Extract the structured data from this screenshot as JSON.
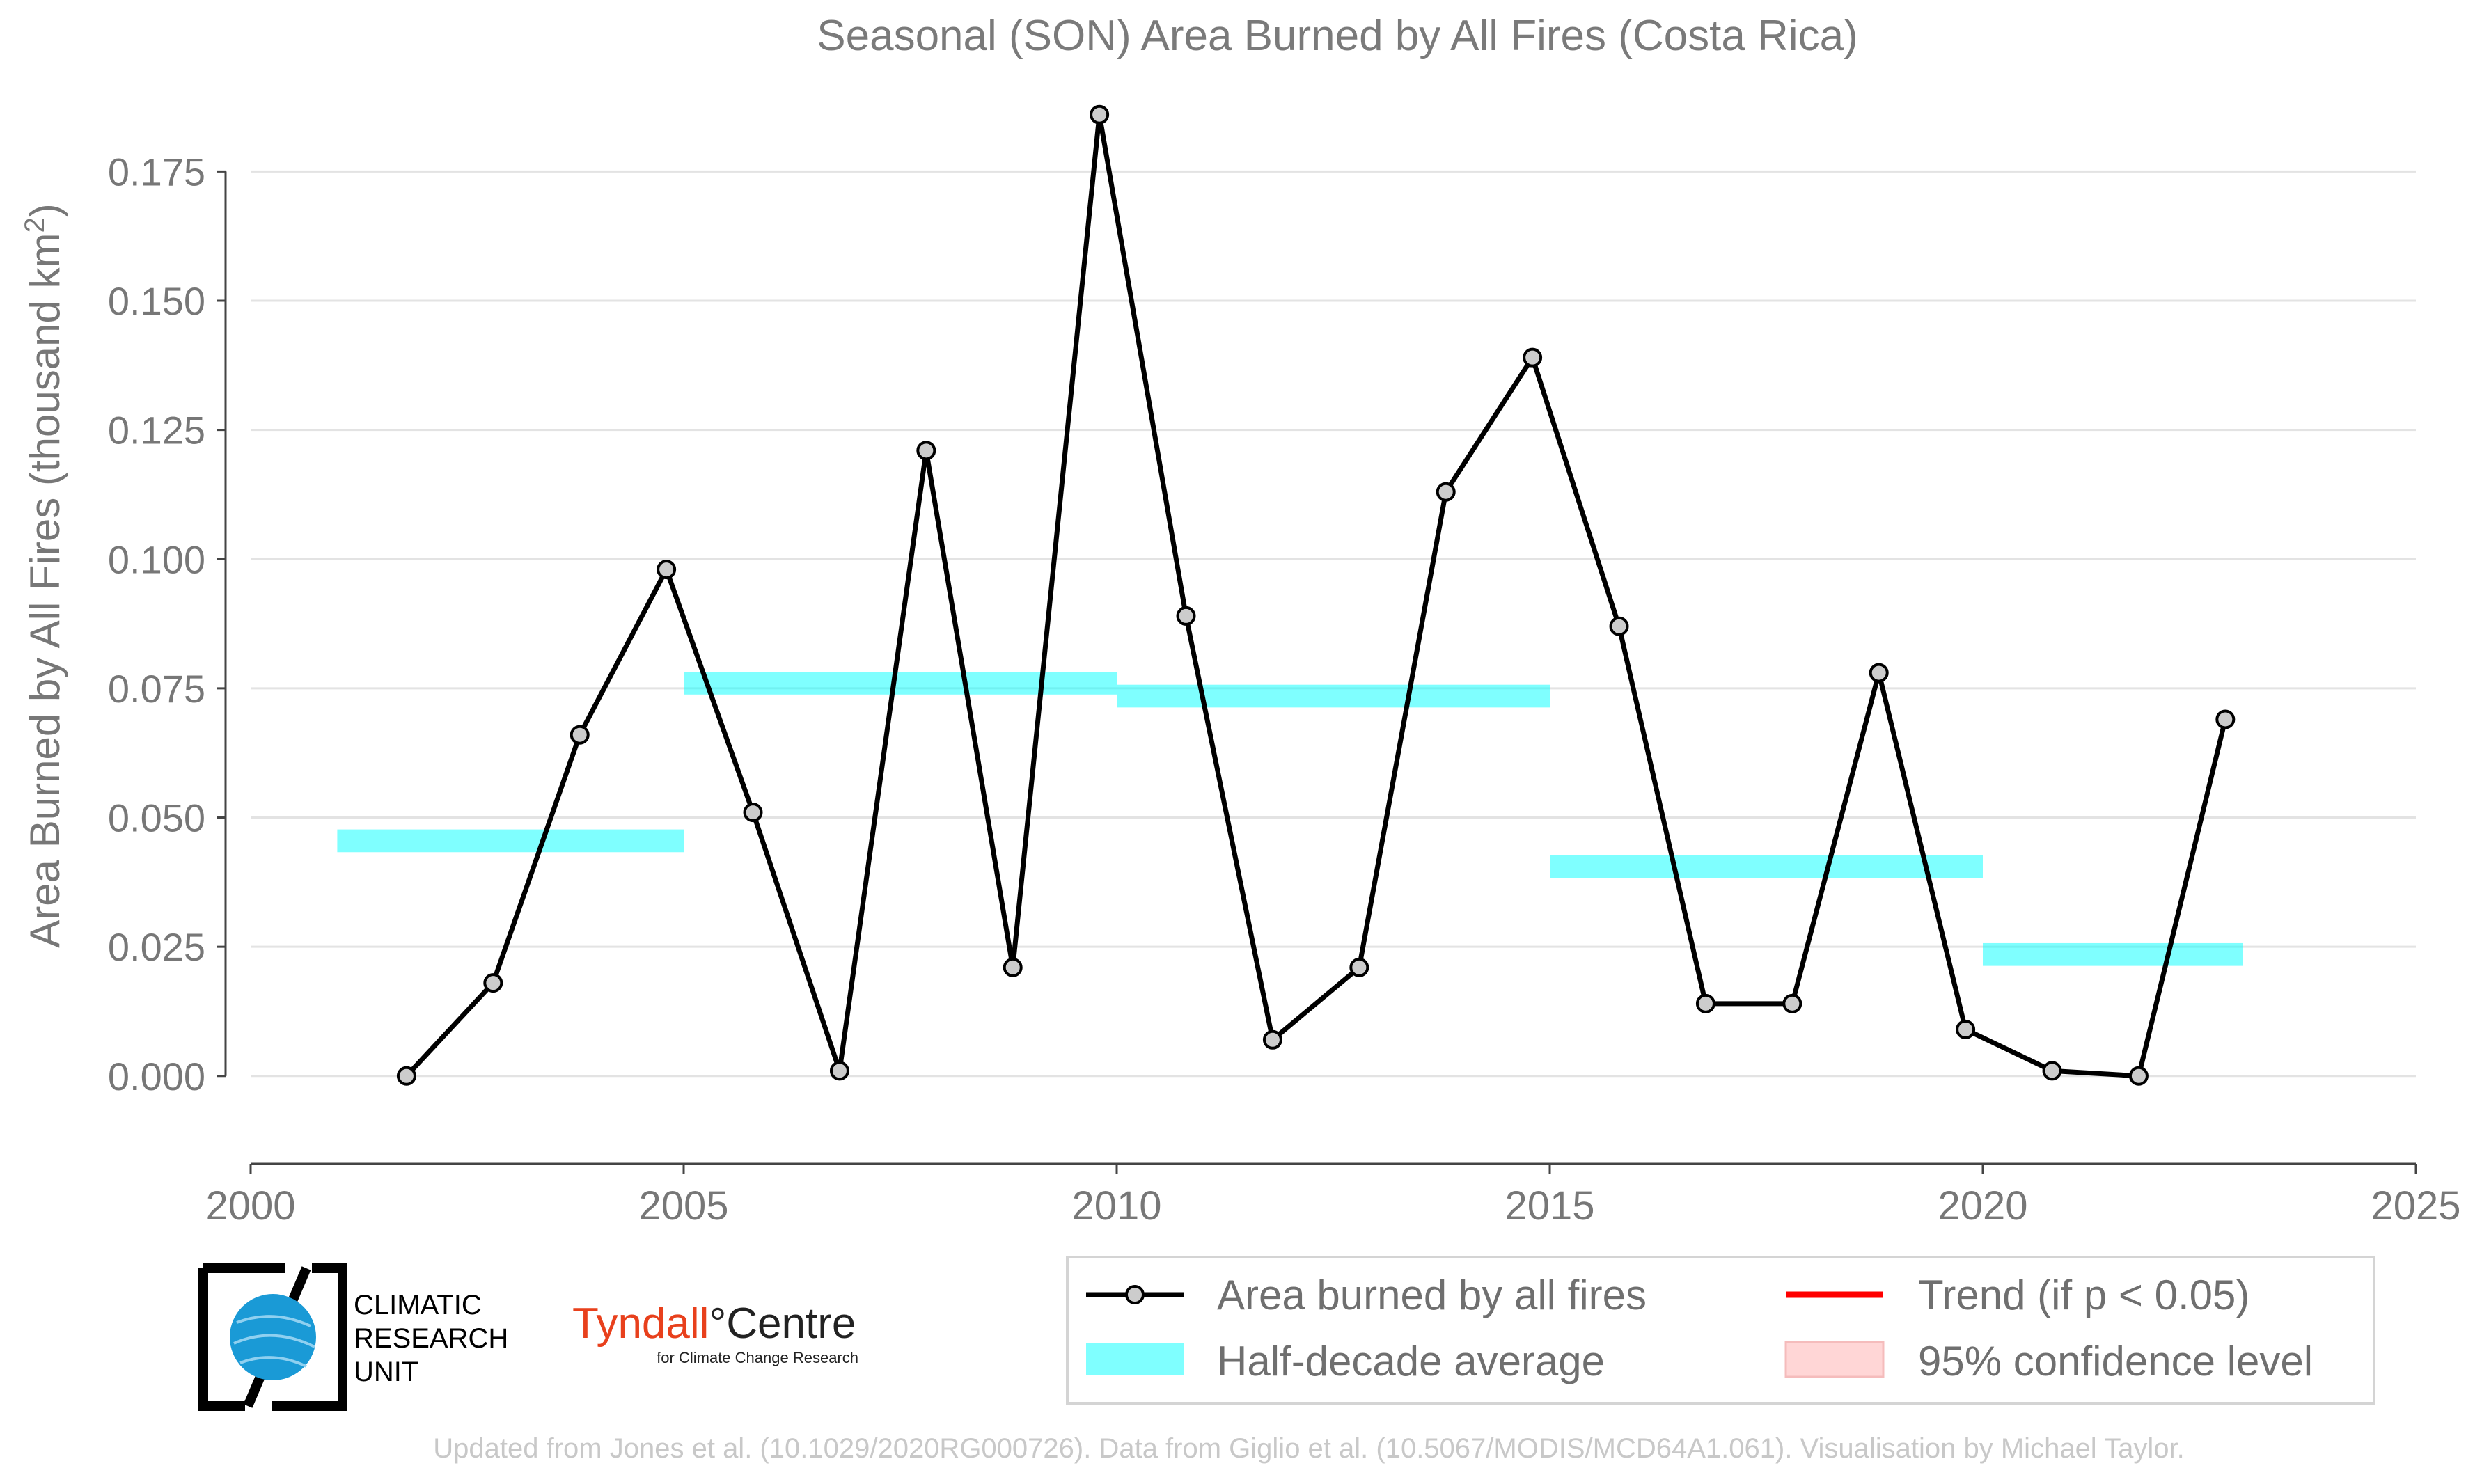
{
  "chart_data": {
    "type": "line",
    "title": "Seasonal (SON) Area Burned by All Fires (Costa Rica)",
    "ylabel_main": "Area Burned by All Fires (thousand km",
    "ylabel_sup": "2",
    "ylabel_end": ")",
    "xlabel": "",
    "xlim": [
      2000,
      2025
    ],
    "ylim": [
      -0.017,
      0.19
    ],
    "x_ticks": [
      "2000",
      "2005",
      "2010",
      "2015",
      "2020",
      "2025"
    ],
    "y_ticks": [
      "0.000",
      "0.025",
      "0.050",
      "0.075",
      "0.100",
      "0.125",
      "0.150",
      "0.175"
    ],
    "grid": true,
    "series": [
      {
        "name": "Area burned by all fires",
        "color": "#000000",
        "marker_fill": "#cccccc",
        "x": [
          2001.8,
          2002.8,
          2003.8,
          2004.8,
          2005.8,
          2006.8,
          2007.8,
          2008.8,
          2009.8,
          2010.8,
          2011.8,
          2012.8,
          2013.8,
          2014.8,
          2015.8,
          2016.8,
          2017.8,
          2018.8,
          2019.8,
          2020.8,
          2021.8,
          2022.8
        ],
        "y": [
          0.0,
          0.018,
          0.066,
          0.098,
          0.051,
          0.001,
          0.121,
          0.021,
          0.186,
          0.089,
          0.007,
          0.021,
          0.113,
          0.139,
          0.087,
          0.014,
          0.014,
          0.078,
          0.009,
          0.001,
          0.0,
          0.069
        ]
      }
    ],
    "half_decade_average": {
      "name": "Half-decade average",
      "color": "#00ffff",
      "segments": [
        {
          "x0": 2001,
          "x1": 2005,
          "y": 0.0455
        },
        {
          "x0": 2005,
          "x1": 2010,
          "y": 0.076
        },
        {
          "x0": 2010,
          "x1": 2015,
          "y": 0.0735
        },
        {
          "x0": 2015,
          "x1": 2020,
          "y": 0.0405
        },
        {
          "x0": 2020,
          "x1": 2023,
          "y": 0.0235
        }
      ]
    },
    "legend": {
      "placement": "bottom-right",
      "entries": [
        {
          "label": "Area burned by all fires",
          "kind": "line-marker",
          "color": "#000000"
        },
        {
          "label": "Trend (if p < 0.05)",
          "kind": "line",
          "color": "#ff0000"
        },
        {
          "label": "Half-decade average",
          "kind": "band",
          "color": "#00ffff"
        },
        {
          "label": "95% confidence level",
          "kind": "patch",
          "color": "#ffd6d6"
        }
      ]
    },
    "annotations": {
      "credit": "Updated from Jones et al. (10.1029/2020RG000726). Data from Giglio et al. (10.5067/MODIS/MCD64A1.061). Visualisation by Michael Taylor."
    }
  },
  "logos": {
    "cru_line1": "CLIMATIC",
    "cru_line2": "RESEARCH",
    "cru_line3": "UNIT",
    "tyndall_name": "Tyndall",
    "tyndall_degree": "°",
    "tyndall_centre": "Centre",
    "tyndall_sub": "for Climate Change Research",
    "tyndall_color": "#e8401c",
    "cru_globe_color": "#1a9ad6"
  }
}
